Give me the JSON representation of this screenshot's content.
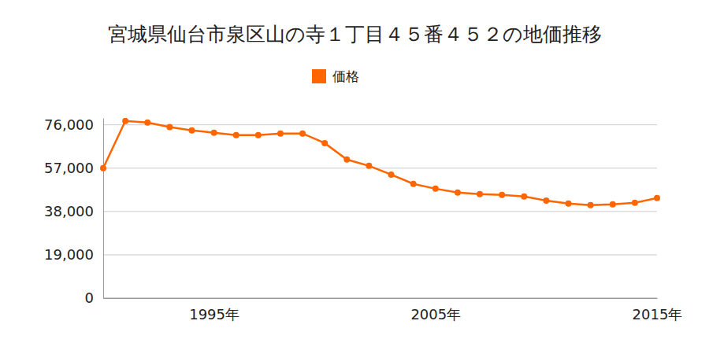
{
  "chart_data": {
    "type": "line",
    "title": "宮城県仙台市泉区山の寺１丁目４５番４５２の地価推移",
    "x": [
      1990,
      1991,
      1992,
      1993,
      1994,
      1995,
      1996,
      1997,
      1998,
      1999,
      2000,
      2001,
      2002,
      2003,
      2004,
      2005,
      2006,
      2007,
      2008,
      2009,
      2010,
      2011,
      2012,
      2013,
      2014,
      2015
    ],
    "series": [
      {
        "name": "価格",
        "color": "#ff6600",
        "marker": "circle",
        "values": [
          57000,
          77700,
          77000,
          75000,
          73600,
          72500,
          71500,
          71500,
          72200,
          72200,
          68000,
          60800,
          58000,
          54200,
          50100,
          48000,
          46300,
          45600,
          45300,
          44600,
          42800,
          41500,
          40800,
          41100,
          41800,
          43900
        ]
      }
    ],
    "xlim": [
      1990,
      2015
    ],
    "xticks": [
      {
        "value": 1995,
        "label": "1995年"
      },
      {
        "value": 2005,
        "label": "2005年"
      },
      {
        "value": 2015,
        "label": "2015年"
      }
    ],
    "ylim": [
      0,
      79000
    ],
    "yticks": [
      0,
      {
        "value": 19000,
        "label": "19,000"
      },
      {
        "value": 38000,
        "label": "38,000"
      },
      {
        "value": 57000,
        "label": "57,000"
      },
      {
        "value": 76000,
        "label": "76,000"
      }
    ],
    "grid": true,
    "legend": "top"
  }
}
